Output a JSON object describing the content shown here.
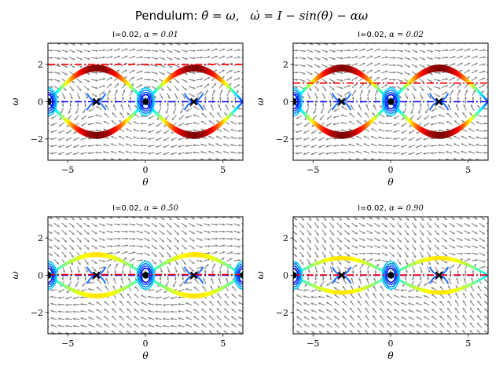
{
  "figure": {
    "suptitle_prefix": "Pendulum: ",
    "suptitle_eq1": "θ̇ = ω,",
    "suptitle_eq2": "ω̇ = I − sin(θ) − αω"
  },
  "chart_data": [
    {
      "type": "line",
      "title_prefix": "I=0.02, ",
      "title_math": "α = 0.01",
      "I": 0.02,
      "alpha": 0.01,
      "xlabel": "θ",
      "ylabel": "ω",
      "xlim": [
        -6.28,
        6.28
      ],
      "ylim": [
        -3.14,
        3.14
      ],
      "xticks": [
        -5,
        0,
        5
      ],
      "yticks": [
        -2,
        0,
        2
      ],
      "hlines": [
        {
          "y": 0,
          "color": "#0000ff",
          "style": "dash-dot"
        },
        {
          "y": 2.0,
          "color": "#ff0000",
          "style": "dash-dot"
        }
      ],
      "equilibria_theta": [
        -6.26,
        -3.16,
        0.02,
        3.12
      ],
      "stable_theta": [
        -6.26,
        0.02
      ],
      "saddle_theta": [
        -3.16,
        3.12
      ],
      "separatrix_amplitude": 1.95,
      "colormap": "jet"
    },
    {
      "type": "line",
      "title_prefix": "I=0.02, ",
      "title_math": "α = 0.02",
      "I": 0.02,
      "alpha": 0.02,
      "xlabel": "θ",
      "ylabel": "ω",
      "xlim": [
        -6.28,
        6.28
      ],
      "ylim": [
        -3.14,
        3.14
      ],
      "xticks": [
        -5,
        0,
        5
      ],
      "yticks": [
        -2,
        0,
        2
      ],
      "hlines": [
        {
          "y": 0,
          "color": "#0000ff",
          "style": "dash-dot"
        },
        {
          "y": 1.0,
          "color": "#ff0000",
          "style": "dash-dot"
        }
      ],
      "equilibria_theta": [
        -6.26,
        -3.16,
        0.02,
        3.12
      ],
      "stable_theta": [
        -6.26,
        0.02
      ],
      "saddle_theta": [
        -3.16,
        3.12
      ],
      "separatrix_amplitude": 1.95,
      "colormap": "jet"
    },
    {
      "type": "line",
      "title_prefix": "I=0.02, ",
      "title_math": "α = 0.50",
      "I": 0.02,
      "alpha": 0.5,
      "xlabel": "θ",
      "ylabel": "ω",
      "xlim": [
        -6.28,
        6.28
      ],
      "ylim": [
        -3.14,
        3.14
      ],
      "xticks": [
        -5,
        0,
        5
      ],
      "yticks": [
        -2,
        0,
        2
      ],
      "hlines": [
        {
          "y": 0,
          "color": "#0000ff",
          "style": "dash-dot"
        },
        {
          "y": 0.04,
          "color": "#ff0000",
          "style": "dash-dot"
        }
      ],
      "equilibria_theta": [
        -6.26,
        -3.16,
        0.02,
        3.12,
        6.3
      ],
      "stable_theta": [
        -6.26,
        0.02,
        6.3
      ],
      "saddle_theta": [
        -3.16,
        3.12
      ],
      "separatrix_amplitude": 1.2,
      "colormap": "jet"
    },
    {
      "type": "line",
      "title_prefix": "I=0.02, ",
      "title_math": "α = 0.90",
      "I": 0.02,
      "alpha": 0.9,
      "xlabel": "θ",
      "ylabel": "ω",
      "xlim": [
        -6.28,
        6.28
      ],
      "ylim": [
        -3.14,
        3.14
      ],
      "xticks": [
        -5,
        0,
        5
      ],
      "yticks": [
        -2,
        0,
        2
      ],
      "hlines": [
        {
          "y": 0,
          "color": "#0000ff",
          "style": "dash-dot"
        },
        {
          "y": 0.02,
          "color": "#ff0000",
          "style": "dash-dot"
        }
      ],
      "equilibria_theta": [
        -6.26,
        -3.16,
        0.02,
        3.12
      ],
      "stable_theta": [
        -6.26,
        0.02
      ],
      "saddle_theta": [
        -3.16,
        3.12
      ],
      "separatrix_amplitude": 1.0,
      "colormap": "jet"
    }
  ]
}
